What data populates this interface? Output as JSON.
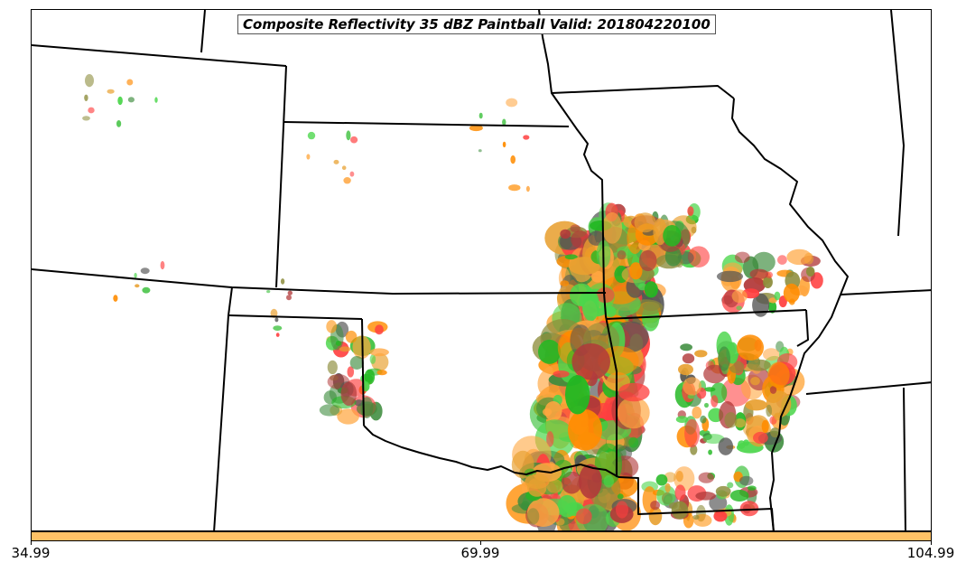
{
  "title": "Composite Reflectivity 35 dBZ Paintball Valid: 201804220100",
  "colorbar": {
    "color": "#ffc266",
    "ticks": [
      "34.99",
      "69.99",
      "104.99"
    ]
  },
  "paintball_colors": [
    "#ff4040",
    "#ff8c00",
    "#ffa640",
    "#22b822",
    "#4cd64c",
    "#8c8c3a",
    "#3d8c3d",
    "#b23a3a",
    "#555555",
    "#e8a030"
  ]
}
